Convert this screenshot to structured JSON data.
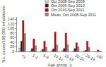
{
  "chart_data": {
    "type": "bar",
    "categories": [
      "<1",
      "1-4",
      "5-9",
      "10-14",
      "15-19",
      "20-24",
      "25-29",
      "≥30"
    ],
    "series": [
      {
        "name": "Oct 2008-Sep 2009",
        "color": "#d4d4d4",
        "values": [
          15,
          3,
          3,
          5,
          5,
          2,
          2,
          0
        ]
      },
      {
        "name": "Oct 2009-Sep 2010",
        "color": "#222222",
        "values": [
          45,
          13,
          10,
          12,
          13,
          13,
          5,
          0
        ]
      },
      {
        "name": "Oct 2010-Sep 2011",
        "color": "#cc0000",
        "values": [
          135,
          55,
          45,
          85,
          80,
          38,
          45,
          7
        ]
      },
      {
        "name": "Mean, Oct 2008-Sep 2011",
        "color": "#888888",
        "values": [
          78,
          25,
          19,
          28,
          30,
          20,
          18,
          2
        ]
      }
    ],
    "xlabel": "Age group, y",
    "ylabel": "No. cases/100,000 inhabitants",
    "ylim": [
      0,
      150
    ],
    "yticks": [
      0,
      20,
      40,
      60,
      80,
      100,
      120,
      140
    ],
    "grid": false,
    "legend": "upper right"
  }
}
